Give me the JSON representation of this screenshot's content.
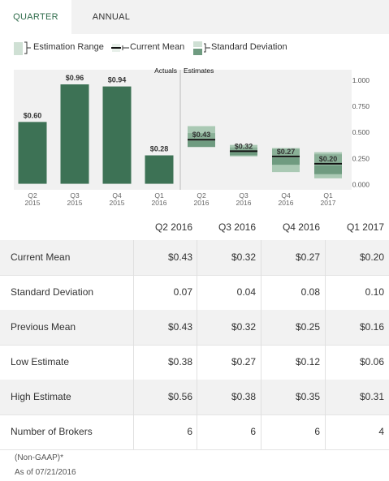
{
  "tabs": {
    "quarter": "QUARTER",
    "annual": "ANNUAL"
  },
  "legend": {
    "range": "Estimation Range",
    "mean": "Current Mean",
    "std": "Standard Deviation"
  },
  "chart_data": {
    "type": "bar",
    "section_labels": {
      "actuals": "Actuals",
      "estimates": "Estimates"
    },
    "categories": [
      {
        "q": "Q2",
        "y": "2015"
      },
      {
        "q": "Q3",
        "y": "2015"
      },
      {
        "q": "Q4",
        "y": "2015"
      },
      {
        "q": "Q1",
        "y": "2016"
      },
      {
        "q": "Q2",
        "y": "2016"
      },
      {
        "q": "Q3",
        "y": "2016"
      },
      {
        "q": "Q4",
        "y": "2016"
      },
      {
        "q": "Q1",
        "y": "2017"
      }
    ],
    "actuals": [
      {
        "value": 0.6,
        "label": "$0.60"
      },
      {
        "value": 0.96,
        "label": "$0.96"
      },
      {
        "value": 0.94,
        "label": "$0.94"
      },
      {
        "value": 0.28,
        "label": "$0.28"
      }
    ],
    "estimates": [
      {
        "mean": 0.43,
        "std": 0.07,
        "low": 0.38,
        "high": 0.56,
        "label": "$0.43"
      },
      {
        "mean": 0.32,
        "std": 0.04,
        "low": 0.27,
        "high": 0.38,
        "label": "$0.32"
      },
      {
        "mean": 0.27,
        "std": 0.08,
        "low": 0.12,
        "high": 0.35,
        "label": "$0.27"
      },
      {
        "mean": 0.2,
        "std": 0.1,
        "low": 0.06,
        "high": 0.31,
        "label": "$0.20"
      }
    ],
    "yticks": [
      {
        "v": 1.0,
        "t": "1.000"
      },
      {
        "v": 0.75,
        "t": "0.750"
      },
      {
        "v": 0.5,
        "t": "0.500"
      },
      {
        "v": 0.25,
        "t": "0.250"
      },
      {
        "v": 0.0,
        "t": "0.000"
      }
    ],
    "ylim": [
      -0.05,
      1.1
    ],
    "colors": {
      "bar": "#3d7255",
      "range": "#aac9b4",
      "mean": "#111111",
      "std": "#6f9b80"
    }
  },
  "table": {
    "headers": [
      "Q2 2016",
      "Q3 2016",
      "Q4 2016",
      "Q1 2017"
    ],
    "rows": [
      {
        "label": "Current Mean",
        "values": [
          "$0.43",
          "$0.32",
          "$0.27",
          "$0.20"
        ]
      },
      {
        "label": "Standard Deviation",
        "values": [
          "0.07",
          "0.04",
          "0.08",
          "0.10"
        ]
      },
      {
        "label": "Previous Mean",
        "values": [
          "$0.43",
          "$0.32",
          "$0.25",
          "$0.16"
        ]
      },
      {
        "label": "Low Estimate",
        "values": [
          "$0.38",
          "$0.27",
          "$0.12",
          "$0.06"
        ]
      },
      {
        "label": "High Estimate",
        "values": [
          "$0.56",
          "$0.38",
          "$0.35",
          "$0.31"
        ]
      },
      {
        "label": "Number of Brokers",
        "values": [
          "6",
          "6",
          "6",
          "4"
        ]
      }
    ]
  },
  "footer": {
    "note": "(Non-GAAP)*",
    "date": "As of 07/21/2016"
  }
}
